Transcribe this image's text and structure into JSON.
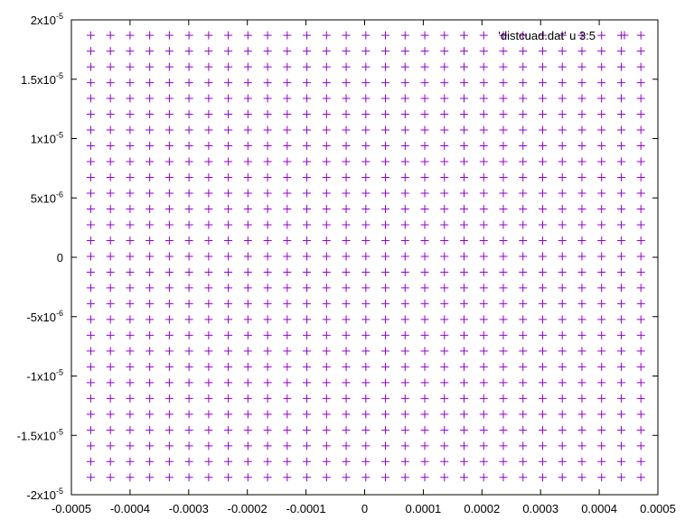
{
  "chart_data": {
    "type": "scatter",
    "marker": "plus",
    "color": "#9400d3",
    "grid": false,
    "legend_position": "top-right",
    "series": [
      {
        "name": "'distcuad.dat' u 3:5",
        "x_values": [
          -0.000467,
          -0.0004335,
          -0.0004,
          -0.0003665,
          -0.000333,
          -0.0002995,
          -0.000266,
          -0.0002325,
          -0.000199,
          -0.0001655,
          -0.000132,
          -9.85e-05,
          -6.5e-05,
          -3.15e-05,
          2e-06,
          3.55e-05,
          6.9e-05,
          0.0001025,
          0.000136,
          0.0001695,
          0.000203,
          0.0002365,
          0.00027,
          0.0003035,
          0.000337,
          0.0003705,
          0.000404,
          0.0004375,
          0.000471
        ],
        "y_values": [
          1.87e-05,
          1.737e-05,
          1.604e-05,
          1.471e-05,
          1.338e-05,
          1.205e-05,
          1.072e-05,
          9.39e-06,
          8.06e-06,
          6.73e-06,
          5.4e-06,
          4.07e-06,
          2.74e-06,
          1.41e-06,
          8e-08,
          -1.25e-06,
          -2.58e-06,
          -3.91e-06,
          -5.24e-06,
          -6.57e-06,
          -7.9e-06,
          -9.23e-06,
          -1.056e-05,
          -1.189e-05,
          -1.322e-05,
          -1.455e-05,
          -1.588e-05,
          -1.721e-05,
          -1.854e-05
        ]
      }
    ],
    "xlim": [
      -0.0005,
      0.0005
    ],
    "ylim": [
      -2e-05,
      2e-05
    ],
    "x_ticks": [
      {
        "value": -0.0005,
        "label": "-0.0005"
      },
      {
        "value": -0.0004,
        "label": "-0.0004"
      },
      {
        "value": -0.0003,
        "label": "-0.0003"
      },
      {
        "value": -0.0002,
        "label": "-0.0002"
      },
      {
        "value": -0.0001,
        "label": "-0.0001"
      },
      {
        "value": 0,
        "label": "0"
      },
      {
        "value": 0.0001,
        "label": "0.0001"
      },
      {
        "value": 0.0002,
        "label": "0.0002"
      },
      {
        "value": 0.0003,
        "label": "0.0003"
      },
      {
        "value": 0.0004,
        "label": "0.0004"
      },
      {
        "value": 0.0005,
        "label": "0.0005"
      }
    ],
    "y_ticks": [
      {
        "value": 2e-05,
        "mantissa": "2x10",
        "exponent": "-5"
      },
      {
        "value": 1.5e-05,
        "mantissa": "1.5x10",
        "exponent": "-5"
      },
      {
        "value": 1e-05,
        "mantissa": "1x10",
        "exponent": "-5"
      },
      {
        "value": 5e-06,
        "mantissa": "5x10",
        "exponent": "-6"
      },
      {
        "value": 0,
        "mantissa": "0",
        "exponent": ""
      },
      {
        "value": -5e-06,
        "mantissa": "-5x10",
        "exponent": "-6"
      },
      {
        "value": -1e-05,
        "mantissa": "-1x10",
        "exponent": "-5"
      },
      {
        "value": -1.5e-05,
        "mantissa": "-1.5x10",
        "exponent": "-5"
      },
      {
        "value": -2e-05,
        "mantissa": "-2x10",
        "exponent": "-5"
      }
    ]
  }
}
